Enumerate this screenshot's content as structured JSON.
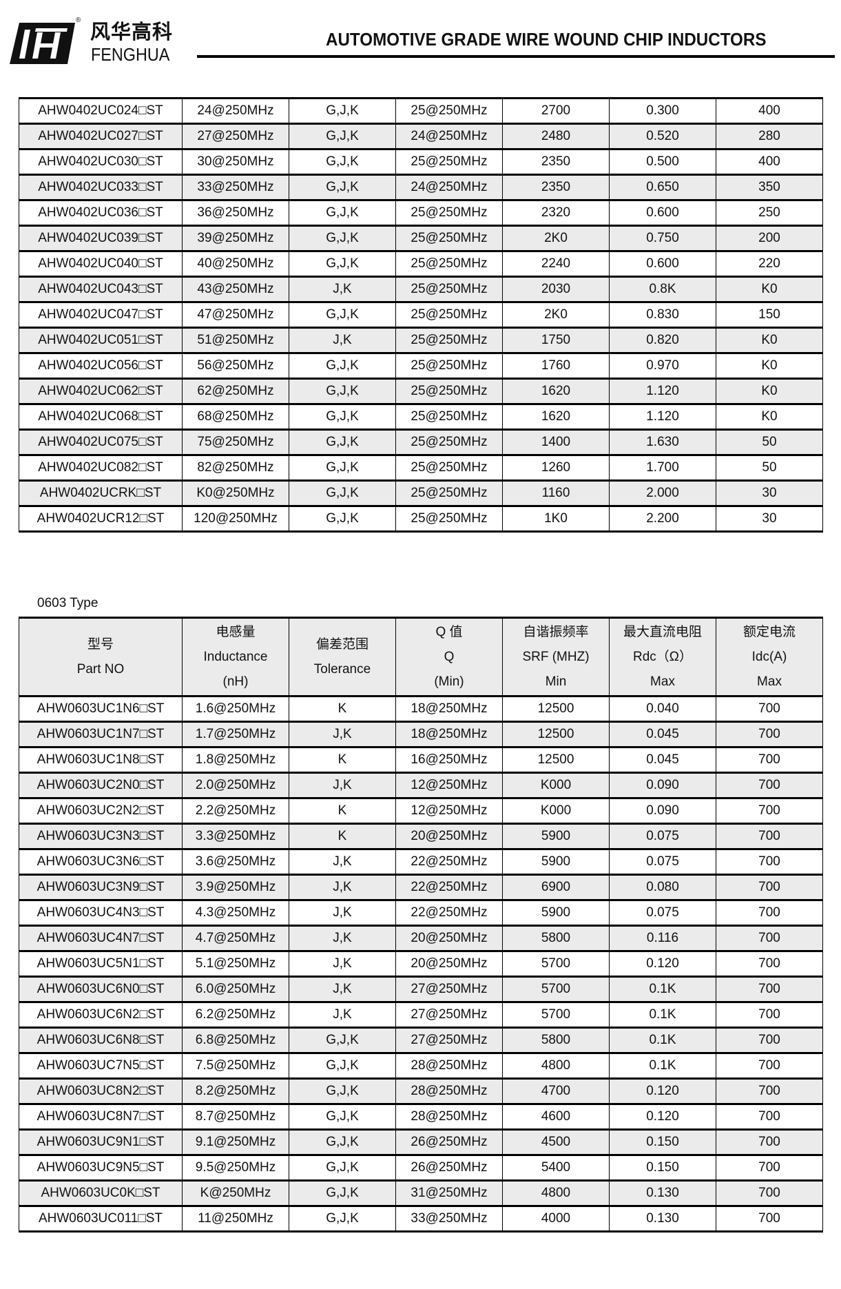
{
  "header": {
    "brand_cn": "风华高科",
    "brand_en": "FENGHUA",
    "registered_mark": "®",
    "title": "AUTOMOTIVE GRADE WIRE WOUND CHIP INDUCTORS"
  },
  "table_0402": {
    "rows": [
      [
        "AHW0402UC024□ST",
        "24@250MHz",
        "G,J,K",
        "25@250MHz",
        "2700",
        "0.300",
        "400"
      ],
      [
        "AHW0402UC027□ST",
        "27@250MHz",
        "G,J,K",
        "24@250MHz",
        "2480",
        "0.520",
        "280"
      ],
      [
        "AHW0402UC030□ST",
        "30@250MHz",
        "G,J,K",
        "25@250MHz",
        "2350",
        "0.500",
        "400"
      ],
      [
        "AHW0402UC033□ST",
        "33@250MHz",
        "G,J,K",
        "24@250MHz",
        "2350",
        "0.650",
        "350"
      ],
      [
        "AHW0402UC036□ST",
        "36@250MHz",
        "G,J,K",
        "25@250MHz",
        "2320",
        "0.600",
        "250"
      ],
      [
        "AHW0402UC039□ST",
        "39@250MHz",
        "G,J,K",
        "25@250MHz",
        "2K0",
        "0.750",
        "200"
      ],
      [
        "AHW0402UC040□ST",
        "40@250MHz",
        "G,J,K",
        "25@250MHz",
        "2240",
        "0.600",
        "220"
      ],
      [
        "AHW0402UC043□ST",
        "43@250MHz",
        "J,K",
        "25@250MHz",
        "2030",
        "0.8K",
        "K0"
      ],
      [
        "AHW0402UC047□ST",
        "47@250MHz",
        "G,J,K",
        "25@250MHz",
        "2K0",
        "0.830",
        "150"
      ],
      [
        "AHW0402UC051□ST",
        "51@250MHz",
        "J,K",
        "25@250MHz",
        "1750",
        "0.820",
        "K0"
      ],
      [
        "AHW0402UC056□ST",
        "56@250MHz",
        "G,J,K",
        "25@250MHz",
        "1760",
        "0.970",
        "K0"
      ],
      [
        "AHW0402UC062□ST",
        "62@250MHz",
        "G,J,K",
        "25@250MHz",
        "1620",
        "1.120",
        "K0"
      ],
      [
        "AHW0402UC068□ST",
        "68@250MHz",
        "G,J,K",
        "25@250MHz",
        "1620",
        "1.120",
        "K0"
      ],
      [
        "AHW0402UC075□ST",
        "75@250MHz",
        "G,J,K",
        "25@250MHz",
        "1400",
        "1.630",
        "50"
      ],
      [
        "AHW0402UC082□ST",
        "82@250MHz",
        "G,J,K",
        "25@250MHz",
        "1260",
        "1.700",
        "50"
      ],
      [
        "AHW0402UCRK□ST",
        "K0@250MHz",
        "G,J,K",
        "25@250MHz",
        "1160",
        "2.000",
        "30"
      ],
      [
        "AHW0402UCR12□ST",
        "120@250MHz",
        "G,J,K",
        "25@250MHz",
        "1K0",
        "2.200",
        "30"
      ]
    ]
  },
  "section_0603": {
    "label": "0603 Type",
    "headers": [
      [
        "型号",
        "Part NO"
      ],
      [
        "电感量",
        "Inductance",
        "(nH)"
      ],
      [
        "偏差范围",
        "Tolerance"
      ],
      [
        "Q 值",
        "Q",
        "(Min)"
      ],
      [
        "自谐振频率",
        "SRF (MHZ)",
        "Min"
      ],
      [
        "最大直流电阻",
        "Rdc（Ω）",
        "Max"
      ],
      [
        "额定电流",
        "Idc(A)",
        "Max"
      ]
    ],
    "rows": [
      [
        "AHW0603UC1N6□ST",
        "1.6@250MHz",
        "K",
        "18@250MHz",
        "12500",
        "0.040",
        "700"
      ],
      [
        "AHW0603UC1N7□ST",
        "1.7@250MHz",
        "J,K",
        "18@250MHz",
        "12500",
        "0.045",
        "700"
      ],
      [
        "AHW0603UC1N8□ST",
        "1.8@250MHz",
        "K",
        "16@250MHz",
        "12500",
        "0.045",
        "700"
      ],
      [
        "AHW0603UC2N0□ST",
        "2.0@250MHz",
        "J,K",
        "12@250MHz",
        "K000",
        "0.090",
        "700"
      ],
      [
        "AHW0603UC2N2□ST",
        "2.2@250MHz",
        "K",
        "12@250MHz",
        "K000",
        "0.090",
        "700"
      ],
      [
        "AHW0603UC3N3□ST",
        "3.3@250MHz",
        "K",
        "20@250MHz",
        "5900",
        "0.075",
        "700"
      ],
      [
        "AHW0603UC3N6□ST",
        "3.6@250MHz",
        "J,K",
        "22@250MHz",
        "5900",
        "0.075",
        "700"
      ],
      [
        "AHW0603UC3N9□ST",
        "3.9@250MHz",
        "J,K",
        "22@250MHz",
        "6900",
        "0.080",
        "700"
      ],
      [
        "AHW0603UC4N3□ST",
        "4.3@250MHz",
        "J,K",
        "22@250MHz",
        "5900",
        "0.075",
        "700"
      ],
      [
        "AHW0603UC4N7□ST",
        "4.7@250MHz",
        "J,K",
        "20@250MHz",
        "5800",
        "0.116",
        "700"
      ],
      [
        "AHW0603UC5N1□ST",
        "5.1@250MHz",
        "J,K",
        "20@250MHz",
        "5700",
        "0.120",
        "700"
      ],
      [
        "AHW0603UC6N0□ST",
        "6.0@250MHz",
        "J,K",
        "27@250MHz",
        "5700",
        "0.1K",
        "700"
      ],
      [
        "AHW0603UC6N2□ST",
        "6.2@250MHz",
        "J,K",
        "27@250MHz",
        "5700",
        "0.1K",
        "700"
      ],
      [
        "AHW0603UC6N8□ST",
        "6.8@250MHz",
        "G,J,K",
        "27@250MHz",
        "5800",
        "0.1K",
        "700"
      ],
      [
        "AHW0603UC7N5□ST",
        "7.5@250MHz",
        "G,J,K",
        "28@250MHz",
        "4800",
        "0.1K",
        "700"
      ],
      [
        "AHW0603UC8N2□ST",
        "8.2@250MHz",
        "G,J,K",
        "28@250MHz",
        "4700",
        "0.120",
        "700"
      ],
      [
        "AHW0603UC8N7□ST",
        "8.7@250MHz",
        "G,J,K",
        "28@250MHz",
        "4600",
        "0.120",
        "700"
      ],
      [
        "AHW0603UC9N1□ST",
        "9.1@250MHz",
        "G,J,K",
        "26@250MHz",
        "4500",
        "0.150",
        "700"
      ],
      [
        "AHW0603UC9N5□ST",
        "9.5@250MHz",
        "G,J,K",
        "26@250MHz",
        "5400",
        "0.150",
        "700"
      ],
      [
        "AHW0603UC0K□ST",
        "K@250MHz",
        "G,J,K",
        "31@250MHz",
        "4800",
        "0.130",
        "700"
      ],
      [
        "AHW0603UC011□ST",
        "11@250MHz",
        "G,J,K",
        "33@250MHz",
        "4000",
        "0.130",
        "700"
      ]
    ]
  },
  "colors": {
    "row_shade": "#ebebeb",
    "border": "#000000"
  }
}
